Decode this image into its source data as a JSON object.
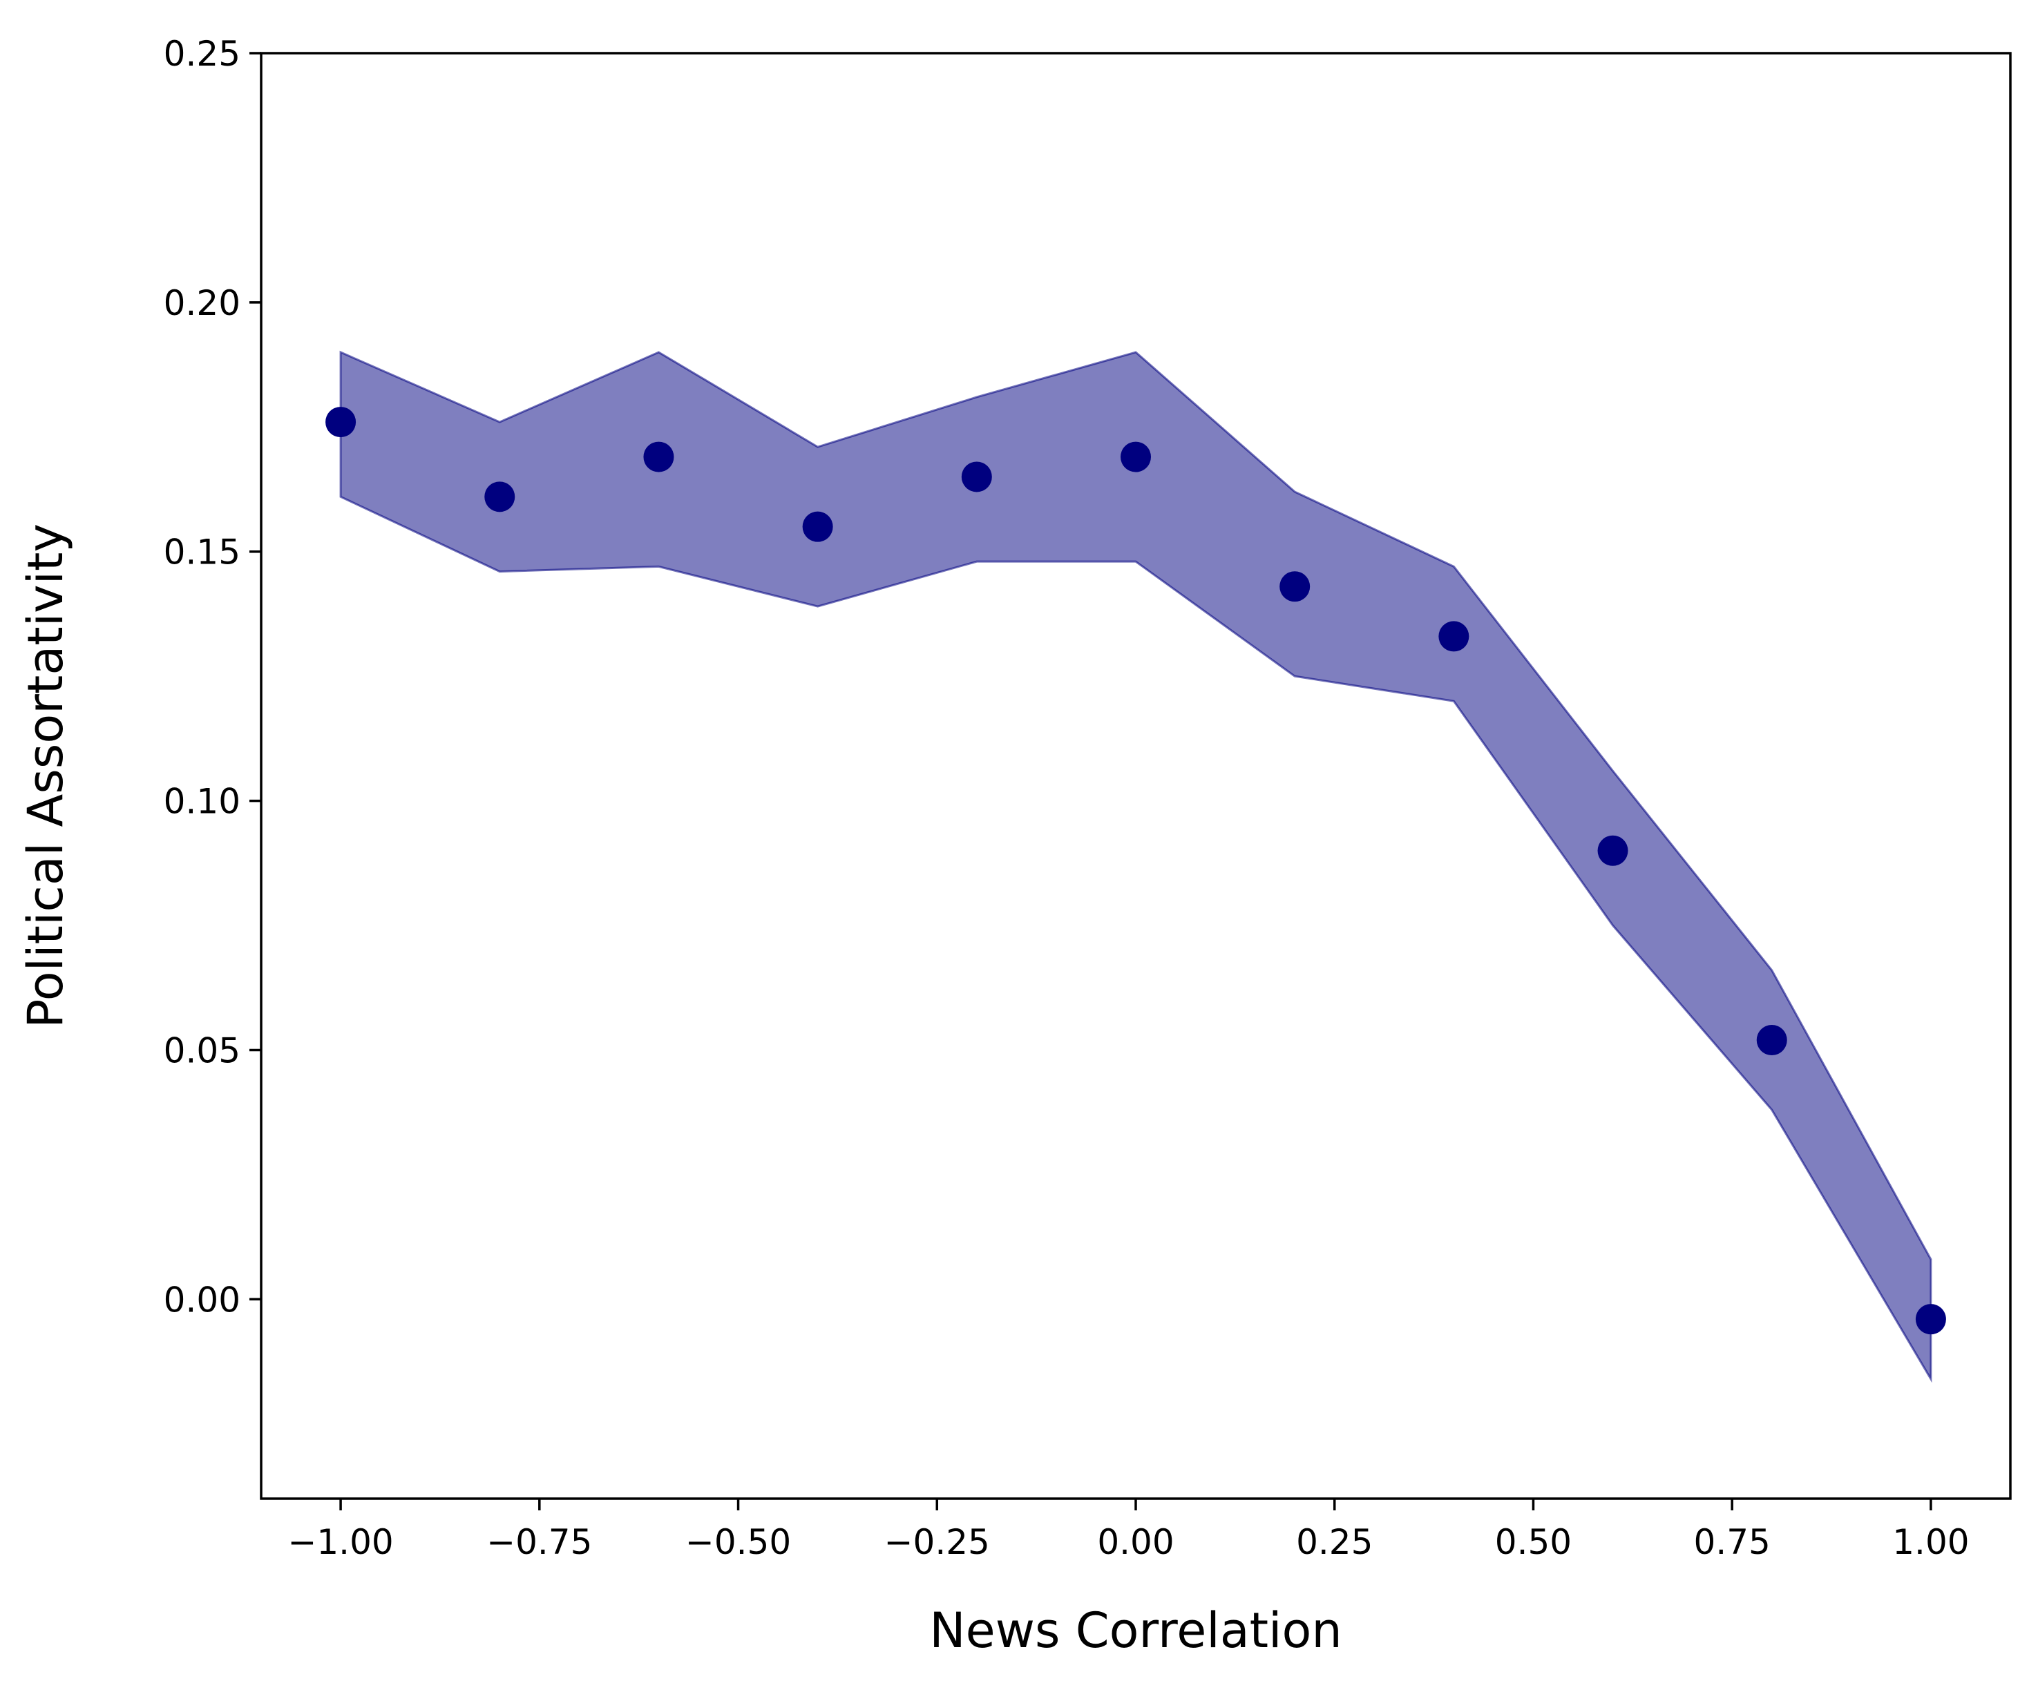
{
  "chart_data": {
    "type": "scatter",
    "title": "",
    "xlabel": "News Correlation",
    "ylabel": "Political Assortativity",
    "xlim": [
      -1.1,
      1.1
    ],
    "ylim": [
      -0.04,
      0.25
    ],
    "xticks": [
      -1.0,
      -0.75,
      -0.5,
      -0.25,
      0.0,
      0.25,
      0.5,
      0.75,
      1.0
    ],
    "xtick_labels": [
      "−1.00",
      "−0.75",
      "−0.50",
      "−0.25",
      "0.00",
      "0.25",
      "0.50",
      "0.75",
      "1.00"
    ],
    "yticks": [
      0.0,
      0.05,
      0.1,
      0.15,
      0.2,
      0.25
    ],
    "ytick_labels": [
      "0.00",
      "0.05",
      "0.10",
      "0.15",
      "0.20",
      "0.25"
    ],
    "grid": false,
    "series": [
      {
        "color": "#00007f",
        "band_color": "#00007f",
        "band_opacity": 0.5,
        "x": [
          -1.0,
          -0.8,
          -0.6,
          -0.4,
          -0.2,
          0.0,
          0.2,
          0.4,
          0.6,
          0.8,
          1.0
        ],
        "y": [
          0.176,
          0.161,
          0.169,
          0.155,
          0.165,
          0.169,
          0.143,
          0.133,
          0.09,
          0.052,
          -0.004
        ],
        "upper": [
          0.19,
          0.176,
          0.19,
          0.171,
          0.181,
          0.19,
          0.162,
          0.147,
          0.106,
          0.066,
          0.008
        ],
        "lower": [
          0.161,
          0.146,
          0.147,
          0.139,
          0.148,
          0.148,
          0.125,
          0.12,
          0.075,
          0.038,
          -0.016
        ]
      }
    ]
  }
}
